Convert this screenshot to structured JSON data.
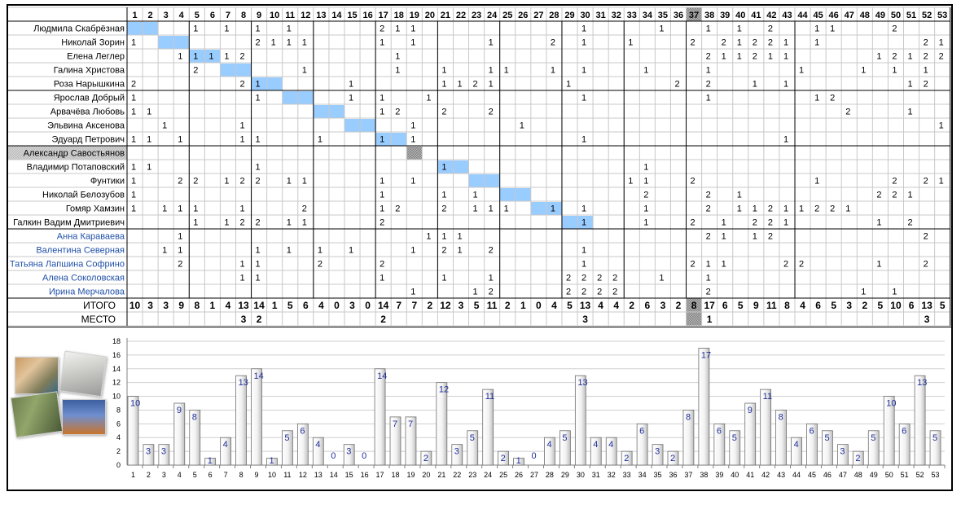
{
  "columns": [
    "1",
    "2",
    "3",
    "4",
    "5",
    "6",
    "7",
    "8",
    "9",
    "10",
    "11",
    "12",
    "13",
    "14",
    "15",
    "16",
    "17",
    "18",
    "19",
    "20",
    "21",
    "22",
    "23",
    "24",
    "25",
    "26",
    "27",
    "28",
    "29",
    "30",
    "31",
    "32",
    "33",
    "34",
    "35",
    "36",
    "37",
    "38",
    "39",
    "40",
    "41",
    "42",
    "43",
    "44",
    "45",
    "46",
    "47",
    "48",
    "49",
    "50",
    "51",
    "52",
    "53"
  ],
  "players": [
    {
      "name": "Людмила Скабрёзная",
      "style": "normal",
      "cells": {
        "5": "1",
        "7": "1",
        "9": "1",
        "11": "1",
        "17": "2",
        "18": "1",
        "19": "1",
        "30": "1",
        "35": "1",
        "38": "1",
        "40": "1",
        "42": "2",
        "45": "1",
        "46": "1",
        "50": "2"
      }
    },
    {
      "name": "Николай Зорин",
      "style": "normal",
      "cells": {
        "1": "1",
        "9": "2",
        "10": "1",
        "11": "1",
        "12": "1",
        "17": "1",
        "19": "1",
        "24": "1",
        "28": "2",
        "30": "1",
        "33": "1",
        "37": "2",
        "39": "2",
        "40": "1",
        "41": "2",
        "42": "2",
        "43": "1",
        "45": "1",
        "52": "2",
        "53": "1"
      }
    },
    {
      "name": "Елена Леглер",
      "style": "normal",
      "cells": {
        "4": "1",
        "5": "1",
        "6": "1",
        "7": "1",
        "8": "2",
        "18": "1",
        "38": "2",
        "39": "1",
        "40": "1",
        "41": "2",
        "42": "1",
        "43": "1",
        "49": "1",
        "50": "2",
        "51": "1",
        "52": "2",
        "53": "2"
      }
    },
    {
      "name": "Галина Христова",
      "style": "normal",
      "cells": {
        "5": "2",
        "12": "1",
        "18": "1",
        "21": "1",
        "24": "1",
        "25": "1",
        "28": "1",
        "30": "1",
        "34": "1",
        "38": "1",
        "44": "1",
        "48": "1",
        "50": "1",
        "52": "1"
      }
    },
    {
      "name": "Роза Нарышкина",
      "style": "normal",
      "cells": {
        "1": "2",
        "8": "2",
        "9": "1",
        "15": "1",
        "21": "1",
        "22": "1",
        "23": "2",
        "24": "1",
        "29": "1",
        "36": "2",
        "38": "2",
        "41": "1",
        "43": "1",
        "51": "1",
        "52": "2"
      }
    },
    {
      "name": "Ярослав Добрый",
      "style": "normal",
      "cells": {
        "1": "1",
        "9": "1",
        "15": "1",
        "17": "1",
        "20": "1",
        "30": "1",
        "38": "1",
        "45": "1",
        "46": "2"
      }
    },
    {
      "name": "Арвачёва Любовь",
      "style": "normal",
      "cells": {
        "1": "1",
        "2": "1",
        "17": "1",
        "18": "2",
        "21": "2",
        "24": "2",
        "47": "2",
        "51": "1"
      }
    },
    {
      "name": "Эльвина Аксенова",
      "style": "normal",
      "cells": {
        "3": "1",
        "8": "1",
        "19": "1",
        "26": "1",
        "53": "1"
      }
    },
    {
      "name": "Эдуард Петрович",
      "style": "normal",
      "cells": {
        "1": "1",
        "2": "1",
        "4": "1",
        "8": "1",
        "9": "1",
        "13": "1",
        "17": "1",
        "19": "1",
        "30": "1",
        "43": "1"
      }
    },
    {
      "name": "Александр Савостьянов",
      "style": "absent",
      "cells": {}
    },
    {
      "name": "Владимир Потаповский",
      "style": "normal",
      "cells": {
        "1": "1",
        "2": "1",
        "9": "1",
        "21": "1",
        "34": "1"
      }
    },
    {
      "name": "Фунтики",
      "style": "normal",
      "cells": {
        "1": "1",
        "4": "2",
        "5": "2",
        "7": "1",
        "8": "2",
        "9": "2",
        "11": "1",
        "12": "1",
        "17": "1",
        "19": "1",
        "33": "1",
        "34": "1",
        "37": "2",
        "45": "1",
        "50": "2",
        "52": "2",
        "53": "1"
      }
    },
    {
      "name": "Николай Белозубов",
      "style": "normal",
      "cells": {
        "1": "1",
        "17": "1",
        "21": "1",
        "23": "1",
        "34": "2",
        "38": "2",
        "40": "1",
        "49": "2",
        "50": "2",
        "51": "1"
      }
    },
    {
      "name": "Гомяр Хамзин",
      "style": "normal",
      "cells": {
        "1": "1",
        "3": "1",
        "4": "1",
        "5": "1",
        "8": "1",
        "12": "2",
        "17": "1",
        "18": "2",
        "21": "2",
        "23": "1",
        "24": "1",
        "25": "1",
        "28": "1",
        "30": "1",
        "34": "1",
        "38": "2",
        "40": "1",
        "41": "1",
        "42": "2",
        "43": "1",
        "44": "1",
        "45": "2",
        "46": "2",
        "47": "1"
      }
    },
    {
      "name": "Галкин Вадим Дмитриевич",
      "style": "normal",
      "cells": {
        "5": "1",
        "7": "1",
        "8": "2",
        "9": "2",
        "11": "1",
        "12": "1",
        "17": "2",
        "30": "1",
        "34": "1",
        "37": "2",
        "39": "1",
        "41": "2",
        "42": "2",
        "43": "1",
        "49": "1",
        "51": "2"
      }
    },
    {
      "name": "Анна Караваева",
      "style": "guest",
      "cells": {
        "4": "1",
        "20": "1",
        "21": "1",
        "22": "1",
        "38": "2",
        "39": "1",
        "41": "1",
        "42": "2",
        "52": "2"
      }
    },
    {
      "name": "Валентина Северная",
      "style": "guest",
      "cells": {
        "3": "1",
        "4": "1",
        "9": "1",
        "11": "1",
        "13": "1",
        "15": "1",
        "19": "1",
        "21": "2",
        "22": "1",
        "24": "2",
        "30": "1"
      }
    },
    {
      "name": "Татьяна Лапшина Софрино",
      "style": "guest",
      "cells": {
        "4": "2",
        "8": "1",
        "9": "1",
        "13": "2",
        "17": "2",
        "30": "1",
        "37": "2",
        "38": "1",
        "39": "1",
        "43": "2",
        "44": "2",
        "49": "1",
        "52": "2"
      }
    },
    {
      "name": "Алена Соколовская",
      "style": "guest",
      "cells": {
        "8": "1",
        "9": "1",
        "17": "1",
        "21": "1",
        "24": "1",
        "29": "2",
        "30": "2",
        "31": "2",
        "32": "2",
        "35": "1",
        "38": "1"
      }
    },
    {
      "name": "Ирина Мерчалова",
      "style": "guest",
      "cells": {
        "19": "1",
        "23": "1",
        "24": "2",
        "29": "2",
        "30": "2",
        "31": "2",
        "32": "2",
        "38": "2",
        "48": "1",
        "50": "1"
      }
    }
  ],
  "summary": {
    "itogo_label": "ИТОГО",
    "mesto_label": "МЕСТО",
    "mesto": {
      "8": "3",
      "9": "2",
      "17": "2",
      "30": "3",
      "38": "1",
      "52": "3"
    }
  },
  "colors": {
    "highlight": "#99ccff",
    "absent": "#e46a2a",
    "grid": "#c8c8c8",
    "guest_text": "#1f4fa8",
    "bar_label": "#1f2f9a"
  },
  "icons": [
    "photo-collage"
  ],
  "chart_data": {
    "type": "bar",
    "categories": [
      "1",
      "2",
      "3",
      "4",
      "5",
      "6",
      "7",
      "8",
      "9",
      "10",
      "11",
      "12",
      "13",
      "14",
      "15",
      "16",
      "17",
      "18",
      "19",
      "20",
      "21",
      "22",
      "23",
      "24",
      "25",
      "26",
      "27",
      "28",
      "29",
      "30",
      "31",
      "32",
      "33",
      "34",
      "35",
      "36",
      "37",
      "38",
      "39",
      "40",
      "41",
      "42",
      "43",
      "44",
      "45",
      "46",
      "47",
      "48",
      "49",
      "50",
      "51",
      "52",
      "53"
    ],
    "values": [
      10,
      3,
      3,
      9,
      8,
      1,
      4,
      13,
      14,
      1,
      5,
      6,
      4,
      0,
      3,
      0,
      14,
      7,
      7,
      2,
      12,
      3,
      5,
      11,
      2,
      1,
      0,
      4,
      5,
      13,
      4,
      4,
      2,
      6,
      3,
      2,
      8,
      17,
      6,
      5,
      9,
      11,
      8,
      4,
      6,
      5,
      3,
      2,
      5,
      10,
      6,
      13,
      5
    ],
    "ylim": [
      0,
      18
    ],
    "yticks": [
      0,
      2,
      4,
      6,
      8,
      10,
      12,
      14,
      16,
      18
    ],
    "grid": true,
    "title": "",
    "xlabel": "",
    "ylabel": ""
  }
}
